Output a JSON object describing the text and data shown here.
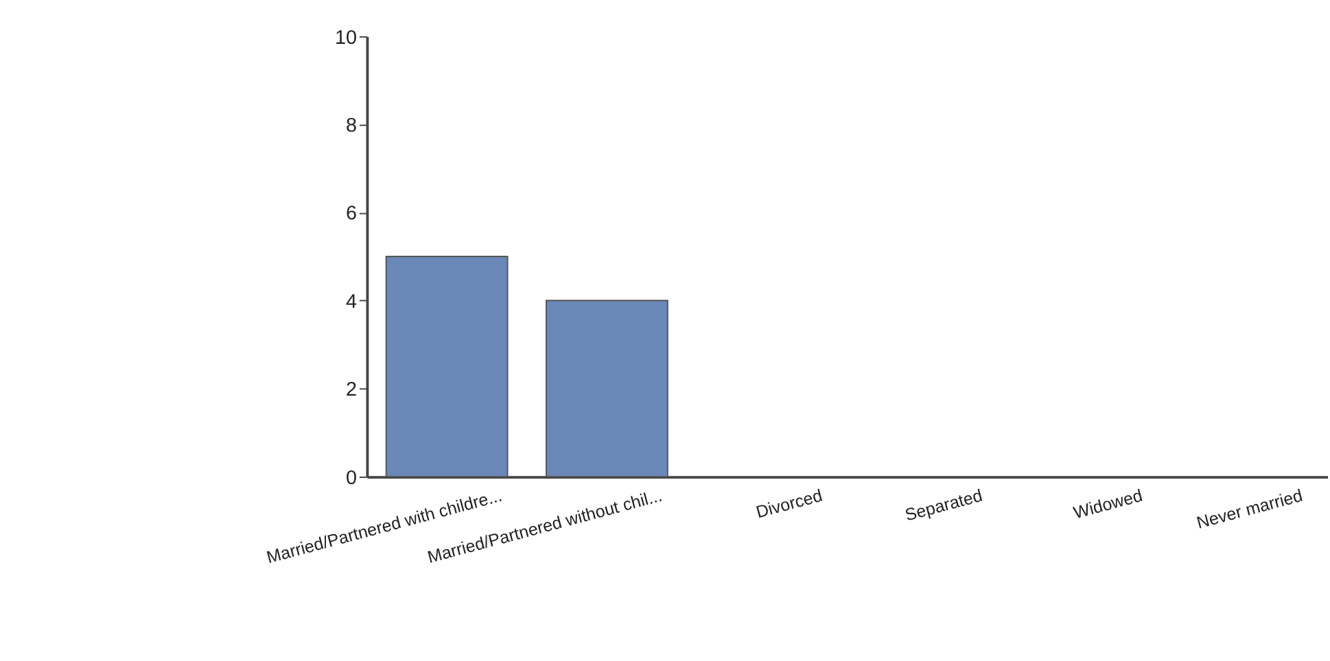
{
  "chart_data": {
    "type": "bar",
    "categories": [
      "Married/Partnered with childre...",
      "Married/Partnered without chil...",
      "Divorced",
      "Separated",
      "Widowed",
      "Never married"
    ],
    "values": [
      5,
      4,
      0,
      0,
      0,
      0
    ],
    "color": "#6a88b8",
    "ylim": [
      0,
      10
    ],
    "yticks": [
      0,
      2,
      4,
      6,
      8,
      10
    ],
    "grid": false
  }
}
